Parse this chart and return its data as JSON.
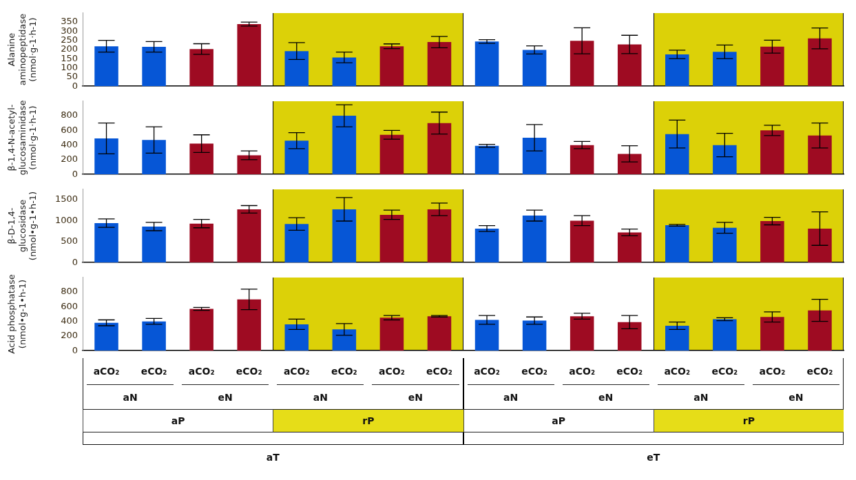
{
  "chart_data": [
    {
      "type": "bar",
      "ylabel": "Alanine aminopeptidase (nmol·g-1·h-1)",
      "categories": [
        null,
        null,
        null,
        null,
        null,
        null,
        null,
        null,
        null,
        null,
        null,
        null,
        null,
        null,
        null,
        null
      ],
      "values": [
        218,
        215,
        203,
        339,
        192,
        157,
        218,
        241,
        244,
        198,
        248,
        228,
        174,
        188,
        216,
        261
      ],
      "errors": [
        32,
        29,
        29,
        11,
        46,
        29,
        13,
        31,
        10,
        22,
        71,
        50,
        23,
        37,
        35,
        57
      ],
      "colors": [
        "#0656d6",
        "#0656d6",
        "#9e0b22",
        "#9e0b22",
        "#0656d6",
        "#0656d6",
        "#9e0b22",
        "#9e0b22",
        "#0656d6",
        "#0656d6",
        "#9e0b22",
        "#9e0b22",
        "#0656d6",
        "#0656d6",
        "#9e0b22",
        "#9e0b22"
      ],
      "ylim": [
        0,
        400
      ],
      "yticks": [
        0,
        50,
        100,
        150,
        200,
        250,
        300,
        350
      ],
      "tick_labels": "y",
      "grid": false,
      "legend": false
    },
    {
      "type": "bar",
      "ylabel": "β-1,4-N-acetyl-glucosaminidase (nmol·g-1·h-1)",
      "categories": [
        null,
        null,
        null,
        null,
        null,
        null,
        null,
        null,
        null,
        null,
        null,
        null,
        null,
        null,
        null,
        null
      ],
      "values": [
        490,
        470,
        420,
        260,
        460,
        800,
        540,
        700,
        390,
        500,
        400,
        280,
        550,
        400,
        600,
        530
      ],
      "errors": [
        210,
        180,
        120,
        60,
        110,
        150,
        60,
        150,
        20,
        180,
        50,
        110,
        190,
        160,
        70,
        170
      ],
      "colors": [
        "#0656d6",
        "#0656d6",
        "#9e0b22",
        "#9e0b22",
        "#0656d6",
        "#0656d6",
        "#9e0b22",
        "#9e0b22",
        "#0656d6",
        "#0656d6",
        "#9e0b22",
        "#9e0b22",
        "#0656d6",
        "#0656d6",
        "#9e0b22",
        "#9e0b22"
      ],
      "ylim": [
        0,
        1000
      ],
      "yticks": [
        0,
        200,
        400,
        600,
        800
      ],
      "tick_labels": "y",
      "grid": false,
      "legend": false
    },
    {
      "type": "bar",
      "ylabel": "β-D-1,4-glucosidase (nmol•g-1•h-1)",
      "categories": [
        null,
        null,
        null,
        null,
        null,
        null,
        null,
        null,
        null,
        null,
        null,
        null,
        null,
        null,
        null,
        null
      ],
      "values": [
        940,
        860,
        930,
        1270,
        920,
        1270,
        1140,
        1270,
        810,
        1120,
        1000,
        720,
        890,
        830,
        990,
        810
      ],
      "errors": [
        100,
        100,
        100,
        90,
        150,
        280,
        110,
        150,
        70,
        130,
        120,
        80,
        20,
        130,
        90,
        400
      ],
      "colors": [
        "#0656d6",
        "#0656d6",
        "#9e0b22",
        "#9e0b22",
        "#0656d6",
        "#0656d6",
        "#9e0b22",
        "#9e0b22",
        "#0656d6",
        "#0656d6",
        "#9e0b22",
        "#9e0b22",
        "#0656d6",
        "#0656d6",
        "#9e0b22",
        "#9e0b22"
      ],
      "ylim": [
        0,
        1750
      ],
      "yticks": [
        0,
        500,
        1000,
        1500
      ],
      "tick_labels": "y",
      "grid": false,
      "legend": false
    },
    {
      "type": "bar",
      "ylabel": "Acid phosphatase (nmol•g-1•h-1)",
      "categories": [
        "aCO₂",
        "eCO₂",
        "aCO₂",
        "eCO₂",
        "aCO₂",
        "eCO₂",
        "aCO₂",
        "eCO₂",
        "aCO₂",
        "eCO₂",
        "aCO₂",
        "eCO₂",
        "aCO₂",
        "eCO₂",
        "aCO₂",
        "eCO₂"
      ],
      "values": [
        380,
        400,
        570,
        700,
        360,
        290,
        450,
        470,
        420,
        410,
        470,
        390,
        340,
        430,
        460,
        550
      ],
      "errors": [
        40,
        40,
        20,
        140,
        70,
        80,
        30,
        10,
        60,
        50,
        40,
        90,
        50,
        20,
        70,
        150
      ],
      "colors": [
        "#0656d6",
        "#0656d6",
        "#9e0b22",
        "#9e0b22",
        "#0656d6",
        "#0656d6",
        "#9e0b22",
        "#9e0b22",
        "#0656d6",
        "#0656d6",
        "#9e0b22",
        "#9e0b22",
        "#0656d6",
        "#0656d6",
        "#9e0b22",
        "#9e0b22"
      ],
      "ylim": [
        0,
        1000
      ],
      "yticks": [
        0,
        200,
        400,
        600,
        800
      ],
      "grid": false,
      "legend": false,
      "annotations": [
        "aN",
        "eN",
        "aN",
        "eN",
        "aN",
        "eN",
        "aN",
        "eN",
        "aP",
        "rP",
        "aP",
        "rP",
        "aT",
        "eT"
      ]
    }
  ]
}
